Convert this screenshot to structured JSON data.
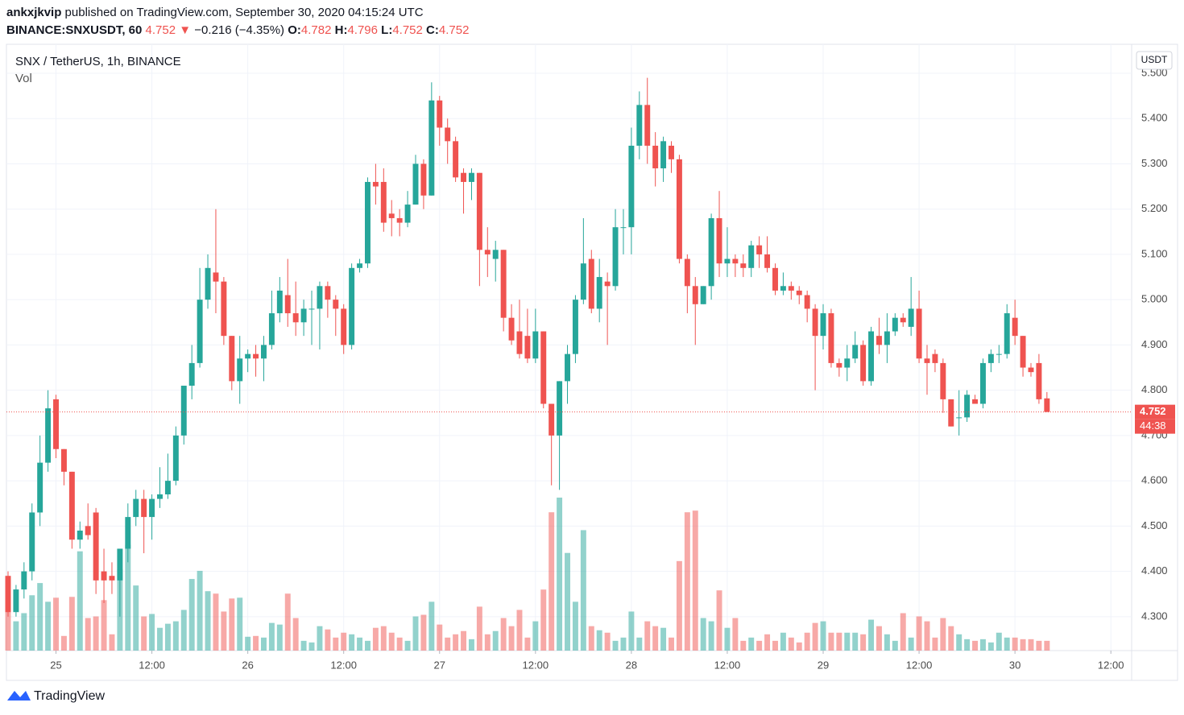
{
  "header": {
    "author": "ankxjkvip",
    "published": "published on TradingView.com, September 30, 2020 04:15:24 UTC",
    "symbol": "BINANCE:SNXUSDT, 60",
    "arrow": "▼",
    "change": "−0.216 (−4.35%)",
    "o_label": "O:",
    "h_label": "H:",
    "l_label": "L:",
    "c_label": "C:"
  },
  "chart_data": {
    "type": "candlestick",
    "title": "SNX / TetherUS, 1h, BINANCE",
    "volume_label": "Vol",
    "currency": "USDT",
    "countdown": "44:38",
    "brand": "TradingView",
    "up_color": "#26a69a",
    "down_color": "#ef5350",
    "grid": true,
    "series": {
      "open": [
        4.39,
        4.31,
        4.36,
        4.4,
        4.53,
        4.64,
        4.78,
        4.67,
        4.62,
        4.47,
        4.5,
        4.53,
        4.4,
        4.39,
        4.38,
        4.45,
        4.52,
        4.56,
        4.52,
        4.56,
        4.57,
        4.6,
        4.7,
        4.81,
        4.86,
        5.0,
        5.06,
        5.04,
        4.92,
        4.82,
        4.87,
        4.88,
        4.87,
        4.9,
        4.97,
        5.01,
        4.97,
        4.95,
        4.98,
        4.98,
        5.03,
        5.0,
        4.98,
        4.9,
        5.07,
        5.08,
        5.26,
        5.26,
        5.19,
        5.18,
        5.17,
        5.21,
        5.3,
        5.23,
        5.44,
        5.38,
        5.35,
        5.28,
        5.26,
        5.28,
        5.11,
        5.09,
        5.11,
        4.96,
        4.93,
        4.92,
        4.87,
        4.93,
        4.77,
        4.7,
        4.82,
        4.88,
        5.0,
        5.09,
        4.98,
        5.04,
        5.03,
        5.16,
        5.16,
        5.34,
        5.43,
        5.34,
        5.29,
        5.34,
        5.31,
        5.09,
        5.03,
        4.99,
        5.03,
        5.18,
        5.08,
        5.09,
        5.08,
        5.07,
        5.12,
        5.1,
        5.07,
        5.02,
        5.03,
        5.02,
        5.01,
        4.98,
        4.92,
        4.97,
        4.86,
        4.85,
        4.87,
        4.9,
        4.82,
        4.92,
        4.9,
        4.93,
        4.96,
        4.94,
        4.98,
        4.87,
        4.88,
        4.86,
        4.78,
        4.74,
        4.74,
        4.78,
        4.77,
        4.86,
        4.88,
        4.88,
        4.96,
        4.92,
        4.85,
        4.86,
        4.782
      ],
      "high": [
        4.4,
        4.37,
        4.42,
        4.55,
        4.7,
        4.8,
        4.79,
        4.67,
        4.62,
        4.51,
        4.55,
        4.54,
        4.45,
        4.42,
        4.45,
        4.55,
        4.58,
        4.58,
        4.57,
        4.63,
        4.66,
        4.72,
        4.81,
        4.9,
        5.07,
        5.1,
        5.2,
        5.05,
        4.92,
        4.92,
        4.89,
        4.9,
        4.92,
        5.02,
        5.05,
        5.09,
        5.04,
        5.0,
        5.02,
        5.04,
        5.04,
        5.01,
        4.99,
        5.08,
        5.09,
        5.27,
        5.3,
        5.29,
        5.22,
        5.2,
        5.24,
        5.32,
        5.31,
        5.48,
        5.45,
        5.4,
        5.36,
        5.29,
        5.29,
        5.28,
        5.16,
        5.13,
        5.11,
        4.99,
        5.0,
        4.98,
        4.98,
        4.93,
        4.77,
        4.82,
        4.9,
        5.01,
        5.18,
        5.11,
        5.09,
        5.06,
        5.2,
        5.2,
        5.38,
        5.46,
        5.49,
        5.37,
        5.36,
        5.35,
        5.32,
        5.1,
        5.05,
        5.03,
        5.19,
        5.24,
        5.16,
        5.1,
        5.1,
        5.13,
        5.14,
        5.14,
        5.08,
        5.06,
        5.04,
        5.03,
        5.02,
        4.99,
        4.99,
        4.98,
        4.87,
        4.9,
        4.93,
        4.91,
        4.94,
        4.96,
        4.97,
        4.97,
        4.97,
        5.05,
        5.02,
        4.9,
        4.89,
        4.87,
        4.78,
        4.8,
        4.8,
        4.79,
        4.87,
        4.89,
        4.9,
        4.99,
        5.0,
        4.92,
        4.86,
        4.88,
        4.796
      ],
      "low": [
        4.3,
        4.3,
        4.34,
        4.38,
        4.5,
        4.62,
        4.65,
        4.59,
        4.45,
        4.45,
        4.47,
        4.35,
        4.33,
        4.35,
        4.3,
        4.42,
        4.5,
        4.44,
        4.47,
        4.54,
        4.56,
        4.59,
        4.68,
        4.78,
        4.85,
        4.98,
        4.97,
        4.9,
        4.8,
        4.77,
        4.84,
        4.83,
        4.82,
        4.89,
        4.95,
        4.94,
        4.92,
        4.92,
        4.9,
        4.89,
        4.96,
        4.92,
        4.88,
        4.89,
        5.06,
        5.07,
        5.21,
        5.15,
        5.14,
        5.14,
        5.16,
        5.21,
        5.2,
        5.23,
        5.34,
        5.3,
        5.26,
        5.19,
        5.22,
        5.03,
        5.05,
        5.04,
        4.93,
        4.9,
        4.87,
        4.86,
        4.86,
        4.76,
        4.59,
        4.58,
        4.77,
        4.86,
        4.99,
        4.97,
        4.95,
        4.9,
        5.02,
        5.1,
        5.1,
        5.31,
        5.3,
        5.25,
        5.26,
        5.28,
        5.08,
        4.97,
        4.9,
        4.99,
        5.0,
        5.05,
        5.05,
        5.05,
        5.05,
        5.05,
        5.07,
        5.06,
        5.01,
        5.01,
        5.0,
        4.99,
        4.95,
        4.8,
        4.89,
        4.85,
        4.83,
        4.82,
        4.86,
        4.81,
        4.81,
        4.88,
        4.86,
        4.92,
        4.94,
        4.92,
        4.86,
        4.79,
        4.84,
        4.75,
        4.72,
        4.7,
        4.73,
        4.77,
        4.76,
        4.84,
        4.86,
        4.87,
        4.9,
        4.83,
        4.83,
        4.77,
        4.752
      ],
      "close": [
        4.31,
        4.36,
        4.4,
        4.53,
        4.64,
        4.76,
        4.67,
        4.62,
        4.47,
        4.49,
        4.48,
        4.38,
        4.38,
        4.38,
        4.45,
        4.52,
        4.56,
        4.52,
        4.56,
        4.57,
        4.6,
        4.7,
        4.81,
        4.86,
        5.0,
        5.07,
        5.04,
        4.92,
        4.82,
        4.87,
        4.88,
        4.87,
        4.9,
        4.97,
        5.02,
        4.97,
        4.95,
        4.98,
        4.98,
        5.03,
        5.0,
        4.98,
        4.9,
        5.07,
        5.08,
        5.26,
        5.25,
        5.17,
        5.18,
        5.17,
        5.21,
        5.3,
        5.23,
        5.44,
        5.38,
        5.35,
        5.27,
        5.26,
        5.28,
        5.11,
        5.1,
        5.11,
        4.96,
        4.91,
        4.88,
        4.87,
        4.93,
        4.77,
        4.7,
        4.82,
        4.88,
        5.0,
        5.08,
        4.98,
        5.05,
        5.03,
        5.16,
        5.16,
        5.34,
        5.43,
        5.34,
        5.29,
        5.35,
        5.31,
        5.09,
        5.03,
        4.99,
        5.03,
        5.18,
        5.08,
        5.09,
        5.08,
        5.07,
        5.12,
        5.1,
        5.07,
        5.02,
        5.03,
        5.02,
        5.01,
        4.98,
        4.92,
        4.97,
        4.86,
        4.85,
        4.87,
        4.9,
        4.82,
        4.93,
        4.9,
        4.93,
        4.96,
        4.95,
        4.98,
        4.87,
        4.86,
        4.86,
        4.78,
        4.72,
        4.74,
        4.79,
        4.77,
        4.86,
        4.88,
        4.88,
        4.97,
        4.92,
        4.85,
        4.84,
        4.78,
        4.752
      ],
      "volume": [
        68,
        36,
        46,
        68,
        83,
        60,
        65,
        18,
        66,
        122,
        40,
        42,
        62,
        20,
        100,
        130,
        80,
        42,
        45,
        28,
        33,
        36,
        50,
        88,
        98,
        73,
        70,
        48,
        64,
        65,
        17,
        18,
        16,
        34,
        32,
        70,
        40,
        12,
        10,
        30,
        26,
        16,
        22,
        20,
        16,
        12,
        28,
        30,
        22,
        16,
        12,
        42,
        44,
        60,
        32,
        16,
        20,
        24,
        14,
        54,
        20,
        24,
        40,
        30,
        50,
        16,
        36,
        75,
        170,
        188,
        120,
        60,
        148,
        30,
        25,
        22,
        12,
        16,
        48,
        16,
        36,
        30,
        28,
        16,
        110,
        170,
        172,
        40,
        36,
        74,
        28,
        40,
        12,
        16,
        12,
        20,
        12,
        22,
        16,
        10,
        22,
        34,
        36,
        22,
        22,
        22,
        22,
        20,
        38,
        30,
        20,
        12,
        46,
        16,
        42,
        36,
        16,
        40,
        30,
        20,
        14,
        12,
        14,
        10,
        22,
        16,
        16,
        14,
        14,
        12,
        12
      ]
    },
    "ylim": [
      4.225,
      5.564
    ],
    "yticks": [
      {
        "value": 4.3,
        "label": "4.300"
      },
      {
        "value": 4.4,
        "label": "4.400"
      },
      {
        "value": 4.5,
        "label": "4.500"
      },
      {
        "value": 4.6,
        "label": "4.600"
      },
      {
        "value": 4.7,
        "label": "4.700"
      },
      {
        "value": 4.8,
        "label": "4.800"
      },
      {
        "value": 4.9,
        "label": "4.900"
      },
      {
        "value": 5.0,
        "label": "5.000"
      },
      {
        "value": 5.1,
        "label": "5.100"
      },
      {
        "value": 5.2,
        "label": "5.200"
      },
      {
        "value": 5.3,
        "label": "5.300"
      },
      {
        "value": 5.4,
        "label": "5.400"
      },
      {
        "value": 5.5,
        "label": "5.500"
      }
    ],
    "xlim": [
      -0.2,
      140.6
    ],
    "xticks": [
      {
        "value": 6,
        "label": "25"
      },
      {
        "value": 18,
        "label": "12:00"
      },
      {
        "value": 30,
        "label": "26"
      },
      {
        "value": 42,
        "label": "12:00"
      },
      {
        "value": 54,
        "label": "27"
      },
      {
        "value": 66,
        "label": "12:00"
      },
      {
        "value": 78,
        "label": "28"
      },
      {
        "value": 90,
        "label": "12:00"
      },
      {
        "value": 102,
        "label": "29"
      },
      {
        "value": 114,
        "label": "12:00"
      },
      {
        "value": 126,
        "label": "30"
      },
      {
        "value": 138,
        "label": "12:00"
      }
    ]
  }
}
